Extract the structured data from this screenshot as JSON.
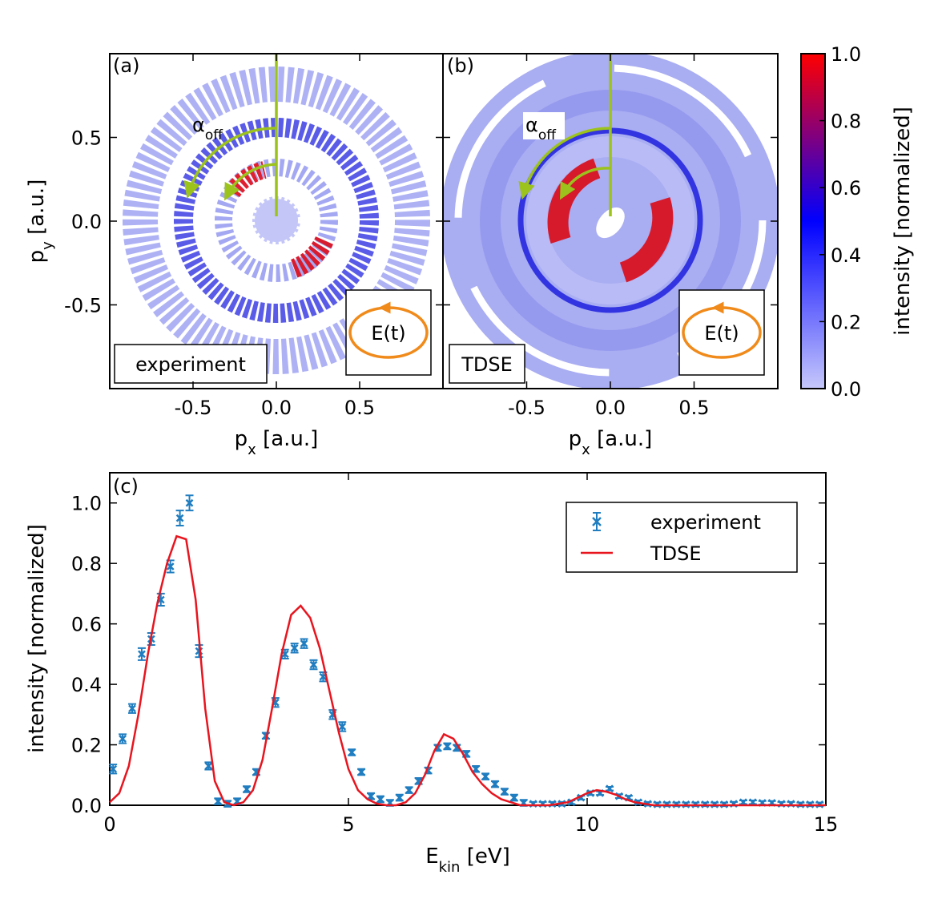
{
  "chart_data": [
    {
      "type": "heatmap",
      "panel_label": "(a)",
      "method_label": "experiment",
      "field_label": "E(t)",
      "angle_label": {
        "main": "α",
        "sub": "off"
      },
      "xlabel": {
        "main": "p",
        "sub": "x",
        "rest": " [a.u.]"
      },
      "ylabel": {
        "main": "p",
        "sub": "y",
        "rest": " [a.u.]"
      },
      "xlim": [
        -1,
        1
      ],
      "ylim": [
        -1,
        1
      ],
      "xticks": [
        -0.5,
        {
          "value": 0,
          "label": "0.0"
        },
        0.5
      ],
      "yticks": [
        -0.5,
        {
          "value": 0,
          "label": "0.0"
        },
        0.5
      ],
      "yticklabels": true
    },
    {
      "type": "heatmap",
      "panel_label": "(b)",
      "method_label": "TDSE",
      "field_label": "E(t)",
      "angle_label": {
        "main": "α",
        "sub": "off"
      },
      "xlabel": {
        "main": "p",
        "sub": "x",
        "rest": " [a.u.]"
      },
      "xlim": [
        -1,
        1
      ],
      "ylim": [
        -1,
        1
      ],
      "xticks": [
        -0.5,
        {
          "value": 0,
          "label": "0.0"
        },
        0.5
      ],
      "yticks": [
        -0.5,
        {
          "value": 0,
          "label": "0.0"
        },
        0.5
      ],
      "yticklabels": false,
      "colorbar": {
        "label": "intensity [normalized]",
        "lim": [
          0,
          1
        ],
        "ticks": [
          {
            "value": 0,
            "label": "0.0"
          },
          0.2,
          0.4,
          0.6,
          0.8,
          {
            "value": 1,
            "label": "1.0"
          }
        ],
        "colors": [
          "#c6c8fb",
          "#0000ff",
          "#ff0000"
        ]
      }
    },
    {
      "type": "line",
      "panel_label": "(c)",
      "xlabel": {
        "main": "E",
        "sub": "kin",
        "rest": " [eV]"
      },
      "ylabel": "intensity [normalized]",
      "xlim": [
        0,
        15
      ],
      "ylim": [
        0,
        1.1
      ],
      "xticks": [
        0,
        5,
        10,
        15
      ],
      "yticks": [
        {
          "value": 0,
          "label": "0.0"
        },
        0.2,
        0.4,
        0.6,
        0.8,
        {
          "value": 1,
          "label": "1.0"
        }
      ],
      "legend": "upper right",
      "series": [
        {
          "name": "experiment",
          "color": "#1f7dc0",
          "marker": "x",
          "x": [
            0.07,
            0.27,
            0.47,
            0.67,
            0.87,
            1.07,
            1.27,
            1.47,
            1.67,
            1.87,
            2.07,
            2.27,
            2.47,
            2.67,
            2.87,
            3.07,
            3.27,
            3.47,
            3.67,
            3.87,
            4.07,
            4.27,
            4.47,
            4.67,
            4.87,
            5.07,
            5.27,
            5.47,
            5.67,
            5.87,
            6.07,
            6.27,
            6.47,
            6.67,
            6.87,
            7.07,
            7.27,
            7.47,
            7.67,
            7.87,
            8.07,
            8.27,
            8.47,
            8.67,
            8.87,
            9.07,
            9.27,
            9.47,
            9.67,
            9.87,
            10.07,
            10.27,
            10.47,
            10.67,
            10.87,
            11.07,
            11.27,
            11.47,
            11.67,
            11.87,
            12.07,
            12.27,
            12.47,
            12.67,
            12.87,
            13.07,
            13.27,
            13.47,
            13.67,
            13.87,
            14.07,
            14.27,
            14.47,
            14.67,
            14.87
          ],
          "values": [
            0.12,
            0.22,
            0.32,
            0.5,
            0.55,
            0.68,
            0.79,
            0.95,
            1.0,
            0.51,
            0.13,
            0.013,
            0.005,
            0.013,
            0.053,
            0.11,
            0.23,
            0.34,
            0.5,
            0.52,
            0.535,
            0.465,
            0.425,
            0.3,
            0.26,
            0.175,
            0.11,
            0.03,
            0.02,
            0.008,
            0.025,
            0.05,
            0.08,
            0.115,
            0.19,
            0.195,
            0.19,
            0.17,
            0.12,
            0.095,
            0.07,
            0.045,
            0.025,
            0.008,
            0.005,
            0.005,
            0.005,
            0.005,
            0.01,
            0.025,
            0.04,
            0.04,
            0.055,
            0.03,
            0.025,
            0.01,
            0.005,
            0.003,
            0.003,
            0.003,
            0.003,
            0.003,
            0.003,
            0.003,
            0.003,
            0.005,
            0.01,
            0.01,
            0.008,
            0.008,
            0.005,
            0.005,
            0.003,
            0.003,
            0.003
          ],
          "errors": [
            0.015,
            0.015,
            0.015,
            0.02,
            0.02,
            0.02,
            0.02,
            0.025,
            0.025,
            0.02,
            0.012,
            0.01,
            0.01,
            0.01,
            0.01,
            0.01,
            0.01,
            0.015,
            0.015,
            0.015,
            0.015,
            0.015,
            0.015,
            0.015,
            0.015,
            0.01,
            0.01,
            0.01,
            0.01,
            0.01,
            0.01,
            0.01,
            0.01,
            0.01,
            0.01,
            0.01,
            0.01,
            0.01,
            0.01,
            0.01,
            0.01,
            0.01,
            0.01,
            0.01,
            0.006,
            0.006,
            0.006,
            0.006,
            0.006,
            0.006,
            0.006,
            0.006,
            0.006,
            0.006,
            0.006,
            0.006,
            0.006,
            0.006,
            0.006,
            0.006,
            0.006,
            0.006,
            0.006,
            0.006,
            0.006,
            0.006,
            0.006,
            0.006,
            0.006,
            0.006,
            0.006,
            0.006,
            0.006,
            0.006,
            0.006
          ]
        },
        {
          "name": "TDSE",
          "color": "#e8141e",
          "x": [
            0,
            0.2,
            0.4,
            0.6,
            0.8,
            1,
            1.2,
            1.4,
            1.6,
            1.8,
            2,
            2.2,
            2.4,
            2.6,
            2.8,
            3,
            3.2,
            3.4,
            3.6,
            3.8,
            4,
            4.2,
            4.4,
            4.6,
            4.8,
            5,
            5.2,
            5.4,
            5.6,
            5.8,
            6,
            6.2,
            6.4,
            6.6,
            6.8,
            7,
            7.2,
            7.4,
            7.6,
            7.8,
            8,
            8.2,
            8.4,
            8.6,
            8.8,
            9,
            9.2,
            9.4,
            9.6,
            9.8,
            10,
            10.2,
            10.4,
            10.6,
            10.8,
            11,
            11.2,
            11.4,
            11.6,
            11.8,
            12,
            12.2,
            12.4,
            12.6,
            12.8,
            13,
            13.2,
            13.4,
            13.6,
            13.8,
            14,
            14.2,
            14.4,
            14.6,
            14.8,
            15
          ],
          "values": [
            0.01,
            0.04,
            0.13,
            0.3,
            0.5,
            0.67,
            0.8,
            0.89,
            0.88,
            0.68,
            0.32,
            0.08,
            0.01,
            0,
            0.01,
            0.05,
            0.15,
            0.32,
            0.5,
            0.63,
            0.66,
            0.62,
            0.52,
            0.38,
            0.24,
            0.12,
            0.05,
            0.02,
            0.005,
            0,
            0,
            0.01,
            0.04,
            0.1,
            0.18,
            0.235,
            0.22,
            0.17,
            0.11,
            0.07,
            0.04,
            0.02,
            0.01,
            0,
            0,
            0,
            0,
            0.005,
            0.01,
            0.025,
            0.04,
            0.05,
            0.045,
            0.035,
            0.02,
            0.01,
            0.005,
            0,
            0,
            0,
            0,
            0,
            0,
            0,
            0,
            0,
            0,
            0,
            0,
            0,
            0,
            0,
            0,
            0,
            0,
            0
          ]
        }
      ]
    }
  ]
}
